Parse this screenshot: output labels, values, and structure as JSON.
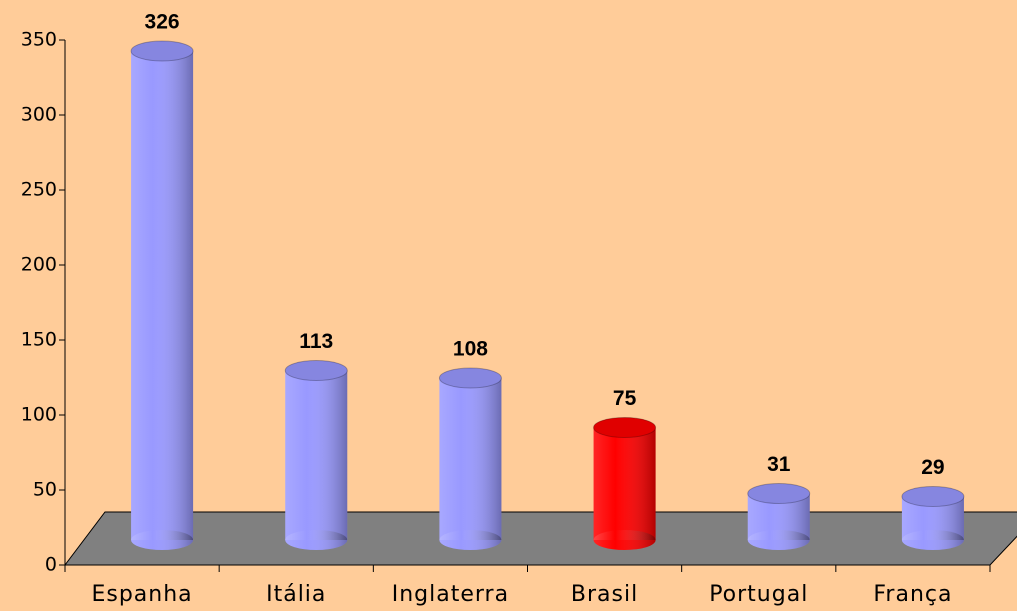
{
  "chart_data": {
    "type": "bar3d",
    "categories": [
      "Espanha",
      "Itália",
      "Inglaterra",
      "Brasil",
      "Portugal",
      "França"
    ],
    "values": [
      326,
      113,
      108,
      75,
      31,
      29
    ],
    "colors": [
      "#9999ff",
      "#9999ff",
      "#9999ff",
      "#ff0000",
      "#9999ff",
      "#9999ff"
    ],
    "ylim": [
      0,
      350
    ],
    "yticks": [
      0,
      50,
      100,
      150,
      200,
      250,
      300,
      350
    ]
  }
}
